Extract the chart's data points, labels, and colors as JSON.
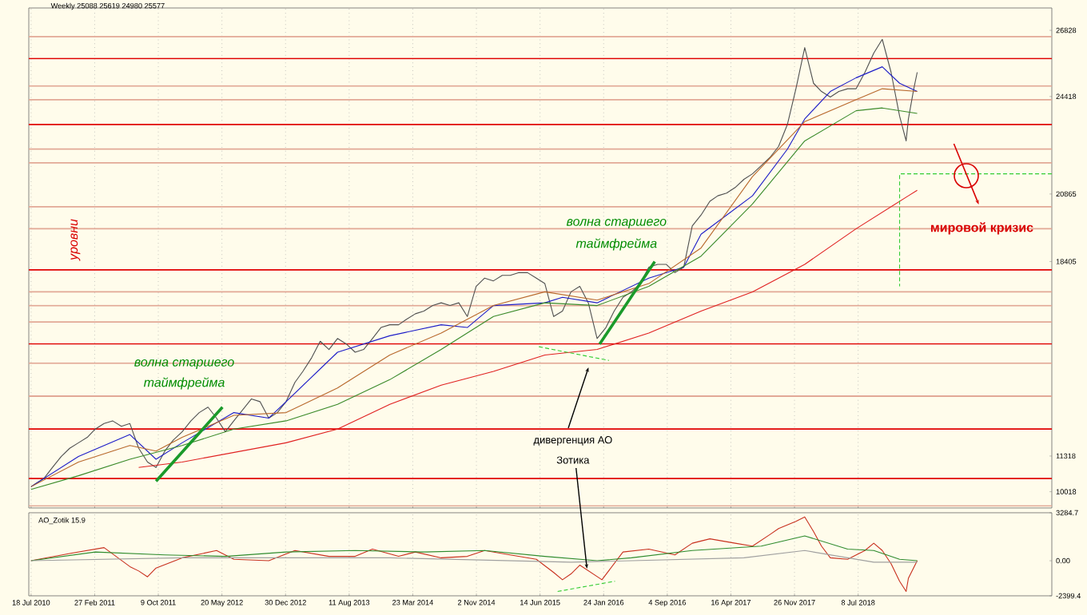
{
  "chart_data": [
    {
      "type": "line",
      "xlim": [
        "2010-07-10",
        "2020-05-20"
      ],
      "ylim": [
        9426,
        27643
      ],
      "grid": "x",
      "tick_labels": "y",
      "xticks": [
        {
          "value": "2010-07-18",
          "label": null
        },
        {
          "value": "2011-02-27",
          "label": null
        },
        {
          "value": "2011-10-09",
          "label": null
        },
        {
          "value": "2012-05-20",
          "label": null
        },
        {
          "value": "2012-12-30",
          "label": null
        },
        {
          "value": "2013-08-11",
          "label": null
        },
        {
          "value": "2014-03-23",
          "label": null
        },
        {
          "value": "2014-11-02",
          "label": null
        },
        {
          "value": "2015-06-14",
          "label": null
        },
        {
          "value": "2016-01-24",
          "label": null
        },
        {
          "value": "2016-09-04",
          "label": null
        },
        {
          "value": "2017-04-16",
          "label": null
        },
        {
          "value": "2017-11-26",
          "label": null
        },
        {
          "value": "2018-07-08",
          "label": null
        }
      ],
      "yticks": [
        26828,
        24418,
        20865,
        18405,
        11318,
        10018
      ],
      "ref_lines": [
        {
          "axis": "y",
          "value": 25800,
          "color": "#e00000"
        },
        {
          "axis": "y",
          "value": 23400,
          "color": "#e00000"
        },
        {
          "axis": "y",
          "value": 18100,
          "color": "#e00000"
        },
        {
          "axis": "y",
          "value": 15400,
          "color": "#e00000"
        },
        {
          "axis": "y",
          "value": 12300,
          "color": "#e00000"
        },
        {
          "axis": "y",
          "value": 10500,
          "color": "#e00000"
        },
        {
          "axis": "y",
          "value": 26600,
          "color": "#e2a896"
        },
        {
          "axis": "y",
          "value": 24800,
          "color": "#e2a896"
        },
        {
          "axis": "y",
          "value": 24300,
          "color": "#e2a896"
        },
        {
          "axis": "y",
          "value": 22500,
          "color": "#e2a896"
        },
        {
          "axis": "y",
          "value": 22000,
          "color": "#e2a896"
        },
        {
          "axis": "y",
          "value": 20400,
          "color": "#e2a896"
        },
        {
          "axis": "y",
          "value": 19600,
          "color": "#e2a896"
        },
        {
          "axis": "y",
          "value": 17300,
          "color": "#e2a896"
        },
        {
          "axis": "y",
          "value": 16800,
          "color": "#e2a896"
        },
        {
          "axis": "y",
          "value": 16200,
          "color": "#e2a896"
        },
        {
          "axis": "y",
          "value": 14700,
          "color": "#e2a896"
        },
        {
          "axis": "y",
          "value": 13500,
          "color": "#e2a896"
        },
        {
          "axis": "y",
          "value": 9500,
          "color": "#e2a896"
        }
      ],
      "series": [
        {
          "color": "#505050",
          "x": [
            "2010-07-18",
            "2010-08",
            "2010-09",
            "2010-10",
            "2010-11",
            "2010-12",
            "2011-01",
            "2011-02",
            "2011-03",
            "2011-04",
            "2011-05",
            "2011-06",
            "2011-07",
            "2011-08",
            "2011-09",
            "2011-10",
            "2011-11",
            "2011-12",
            "2012-01",
            "2012-02",
            "2012-03",
            "2012-04",
            "2012-05",
            "2012-06",
            "2012-07",
            "2012-08",
            "2012-09",
            "2012-10",
            "2012-11",
            "2012-12",
            "2013-01",
            "2013-02",
            "2013-03",
            "2013-04",
            "2013-05",
            "2013-06",
            "2013-07",
            "2013-08",
            "2013-09",
            "2013-10",
            "2013-11",
            "2013-12",
            "2014-01",
            "2014-02",
            "2014-03",
            "2014-04",
            "2014-05",
            "2014-06",
            "2014-07",
            "2014-08",
            "2014-09",
            "2014-10",
            "2014-11",
            "2014-12",
            "2015-01",
            "2015-02",
            "2015-03",
            "2015-04",
            "2015-05",
            "2015-06",
            "2015-07",
            "2015-08",
            "2015-09",
            "2015-10",
            "2015-11",
            "2015-12",
            "2016-01",
            "2016-02",
            "2016-03",
            "2016-04",
            "2016-05",
            "2016-06",
            "2016-07",
            "2016-08",
            "2016-09",
            "2016-10",
            "2016-11",
            "2016-12",
            "2017-01",
            "2017-02",
            "2017-03",
            "2017-04",
            "2017-05",
            "2017-06",
            "2017-07",
            "2017-08",
            "2017-09",
            "2017-10",
            "2017-11",
            "2017-12",
            "2018-01",
            "2018-02",
            "2018-03",
            "2018-04",
            "2018-05",
            "2018-06",
            "2018-07",
            "2018-08",
            "2018-09",
            "2018-10",
            "2018-11",
            "2018-12",
            "2018-12-24",
            "2019-01",
            "2019-01-20",
            "2019-02"
          ],
          "values": [
            10200,
            10300,
            10500,
            10900,
            11300,
            11600,
            11800,
            12000,
            12300,
            12500,
            12600,
            12400,
            12500,
            11600,
            11100,
            10900,
            11500,
            11900,
            12200,
            12600,
            12900,
            13100,
            12700,
            12200,
            12600,
            13000,
            13400,
            13300,
            12700,
            12900,
            13300,
            14000,
            14400,
            14900,
            15500,
            15200,
            15600,
            15400,
            15100,
            15200,
            15600,
            16000,
            16100,
            16100,
            16300,
            16500,
            16600,
            16800,
            16900,
            16800,
            16900,
            16400,
            17500,
            17800,
            17700,
            17900,
            17900,
            18000,
            18000,
            17800,
            17600,
            16400,
            16600,
            17300,
            17500,
            16900,
            15600,
            16000,
            16600,
            17100,
            17300,
            17600,
            18200,
            18300,
            18300,
            18000,
            18200,
            19700,
            20100,
            20600,
            20800,
            20900,
            21100,
            21400,
            21600,
            21900,
            22200,
            22600,
            23400,
            24700,
            26200,
            24900,
            24600,
            24400,
            24600,
            24700,
            24700,
            25300,
            26000,
            26500,
            25300,
            23700,
            22800,
            23600,
            24700,
            25300
          ]
        },
        {
          "color": "#1c1cc8",
          "x": [
            "2010-07-18",
            "2011-01",
            "2011-07",
            "2011-10",
            "2012-01",
            "2012-07",
            "2012-11",
            "2013-01",
            "2013-07",
            "2014-01",
            "2014-07",
            "2014-10",
            "2015-01",
            "2015-07",
            "2015-09",
            "2016-01",
            "2016-07",
            "2016-11",
            "2017-01",
            "2017-07",
            "2017-11",
            "2018-01",
            "2018-04",
            "2018-07",
            "2018-10",
            "2018-12",
            "2019-02"
          ],
          "values": [
            10200,
            11300,
            12100,
            11200,
            11800,
            12900,
            12700,
            13300,
            15100,
            15700,
            16100,
            16000,
            16800,
            16900,
            17100,
            16900,
            17800,
            18200,
            19400,
            20800,
            22500,
            23600,
            24600,
            25100,
            25500,
            24900,
            24600
          ]
        },
        {
          "color": "#b8682c",
          "x": [
            "2010-07-18",
            "2011-01",
            "2011-07",
            "2011-10",
            "2012-01",
            "2012-07",
            "2013-01",
            "2013-07",
            "2014-01",
            "2014-07",
            "2015-01",
            "2015-07",
            "2016-01",
            "2016-07",
            "2017-01",
            "2017-07",
            "2018-01",
            "2018-07",
            "2018-10",
            "2019-02"
          ],
          "values": [
            10200,
            11100,
            11700,
            11500,
            12000,
            12800,
            12900,
            13800,
            15000,
            15800,
            16800,
            17300,
            17000,
            17600,
            18900,
            21500,
            23500,
            24300,
            24700,
            24600
          ]
        },
        {
          "color": "#3a8a2a",
          "x": [
            "2010-07-18",
            "2011-01",
            "2011-07",
            "2012-01",
            "2012-07",
            "2013-01",
            "2013-07",
            "2014-01",
            "2014-07",
            "2015-01",
            "2015-07",
            "2016-01",
            "2016-07",
            "2017-01",
            "2017-07",
            "2018-01",
            "2018-07",
            "2018-10",
            "2019-02"
          ],
          "values": [
            10100,
            10600,
            11200,
            11700,
            12300,
            12600,
            13200,
            14100,
            15200,
            16400,
            16900,
            16800,
            17500,
            18600,
            20500,
            22800,
            23900,
            24000,
            23800
          ]
        },
        {
          "color": "#e02020",
          "x": [
            "2011-08",
            "2012-01",
            "2013-01",
            "2013-07",
            "2014-01",
            "2014-07",
            "2015-01",
            "2015-07",
            "2016-01",
            "2016-07",
            "2017-01",
            "2017-07",
            "2018-01",
            "2018-07",
            "2019-01",
            "2019-02"
          ],
          "values": [
            10900,
            11100,
            11800,
            12300,
            13200,
            13900,
            14400,
            15000,
            15200,
            15800,
            16600,
            17300,
            18300,
            19600,
            20800,
            21000
          ]
        },
        {
          "color": "#1a9a2a",
          "x": [
            "2011-10-01",
            "2012-05-22"
          ],
          "values": [
            10400,
            13100
          ]
        },
        {
          "color": "#1a9a2a",
          "x": [
            "2016-01-10",
            "2016-07-22"
          ],
          "values": [
            15400,
            18400
          ]
        },
        {
          "color": "#33cc33",
          "line_style": "dashed",
          "x": [
            "2015-06-10",
            "2016-02-12"
          ],
          "values": [
            15300,
            14800
          ]
        },
        {
          "color": "#33cc33",
          "line_style": "dashed",
          "x": [
            "2020-05-20",
            "2018-12-01",
            "2018-12-01"
          ],
          "values": [
            21600,
            21600,
            17500
          ]
        }
      ],
      "annotations": [
        "Weekly 25088 25619 24980 25577",
        "уровни",
        "волна старшего",
        "таймфрейма",
        "волна старшего",
        "таймфрейма",
        "мировой кризис",
        "дивергенция АО",
        "Зотика"
      ]
    },
    {
      "type": "line",
      "xlim": [
        "2010-07-10",
        "2020-05-20"
      ],
      "ylim": [
        -2399.4,
        3284.7
      ],
      "grid": "x",
      "xticks": [
        {
          "value": "2010-07-18",
          "label": "18 Jul 2010"
        },
        {
          "value": "2011-02-27",
          "label": "27 Feb 2011"
        },
        {
          "value": "2011-10-09",
          "label": "9 Oct 2011"
        },
        {
          "value": "2012-05-20",
          "label": "20 May 2012"
        },
        {
          "value": "2012-12-30",
          "label": "30 Dec 2012"
        },
        {
          "value": "2013-08-11",
          "label": "11 Aug 2013"
        },
        {
          "value": "2014-03-23",
          "label": "23 Mar 2014"
        },
        {
          "value": "2014-11-02",
          "label": "2 Nov 2014"
        },
        {
          "value": "2015-06-14",
          "label": "14 Jun 2015"
        },
        {
          "value": "2016-01-24",
          "label": "24 Jan 2016"
        },
        {
          "value": "2016-09-04",
          "label": "4 Sep 2016"
        },
        {
          "value": "2017-04-16",
          "label": "16 Apr 2017"
        },
        {
          "value": "2017-11-26",
          "label": "26 Nov 2017"
        },
        {
          "value": "2018-07-08",
          "label": "8 Jul 2018"
        }
      ],
      "yticks": [
        3284.7,
        {
          "value": 0,
          "label": "0.00"
        },
        -2399.4
      ],
      "series": [
        {
          "color": "#c8301e",
          "x": [
            "2010-07-18",
            "2010-12",
            "2011-04",
            "2011-07",
            "2011-08",
            "2011-09",
            "2011-10",
            "2012-01",
            "2012-05",
            "2012-07",
            "2012-11",
            "2013-02",
            "2013-06",
            "2013-09",
            "2013-11",
            "2014-02",
            "2014-04",
            "2014-07",
            "2014-10",
            "2014-12",
            "2015-03",
            "2015-06",
            "2015-08",
            "2015-09",
            "2015-10",
            "2015-11",
            "2016-01-18",
            "2016-04",
            "2016-07",
            "2016-10",
            "2016-12",
            "2017-02",
            "2017-05",
            "2017-07",
            "2017-09",
            "2017-10",
            "2017-12",
            "2018-01",
            "2018-02",
            "2018-03",
            "2018-04",
            "2018-06",
            "2018-08",
            "2018-09",
            "2018-10",
            "2018-11",
            "2018-12",
            "2018-12-24",
            "2019-01",
            "2019-02"
          ],
          "values": [
            0,
            500,
            900,
            -400,
            -700,
            -1100,
            -500,
            200,
            700,
            100,
            0,
            700,
            300,
            300,
            800,
            300,
            600,
            200,
            300,
            700,
            400,
            100,
            -800,
            -1300,
            -900,
            -300,
            -1300,
            600,
            800,
            400,
            1200,
            1500,
            1200,
            1000,
            1800,
            2200,
            2700,
            3000,
            2000,
            1000,
            200,
            100,
            700,
            1200,
            700,
            -200,
            -1400,
            -2100,
            -1200,
            0
          ]
        },
        {
          "color": "#2e8b2e",
          "x": [
            "2010-07-18",
            "2011-03",
            "2011-11",
            "2012-06",
            "2013-01",
            "2013-09",
            "2014-05",
            "2014-12",
            "2015-07",
            "2016-01",
            "2016-05",
            "2016-12",
            "2017-08",
            "2018-01",
            "2018-06",
            "2018-09",
            "2018-12",
            "2019-02"
          ],
          "values": [
            0,
            600,
            400,
            300,
            600,
            700,
            600,
            700,
            300,
            0,
            200,
            700,
            1000,
            1700,
            800,
            700,
            100,
            0
          ]
        },
        {
          "color": "#a0a0a0",
          "x": [
            "2010-07-18",
            "2012-01",
            "2014-01",
            "2015-10",
            "2017-06",
            "2018-01",
            "2018-09",
            "2019-02"
          ],
          "values": [
            0,
            200,
            200,
            -100,
            200,
            700,
            -100,
            -100
          ]
        },
        {
          "color": "#33cc33",
          "line_style": "dashed",
          "x": [
            "2015-08-15",
            "2016-03-04"
          ],
          "values": [
            -2100,
            -1400
          ]
        }
      ],
      "annotations": [
        "AO_Zotik 15.9"
      ]
    }
  ]
}
